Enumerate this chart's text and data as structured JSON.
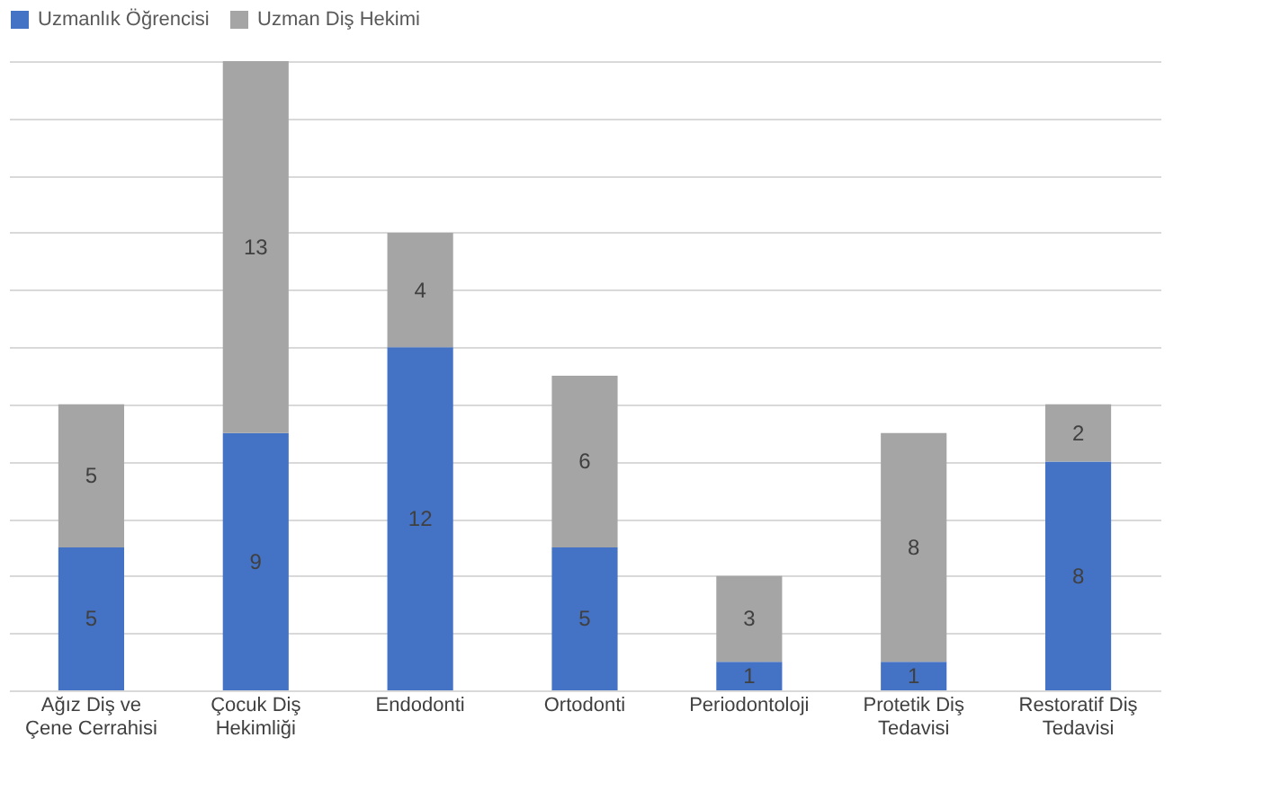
{
  "chart_data": {
    "type": "bar",
    "stacked": true,
    "grid": "y",
    "legend": "top",
    "data_labels": true,
    "tick_labels": "x",
    "categories": [
      "Ağız  Diş ve Çene Cerrahisi",
      "Çocuk Diş Hekimliği",
      "Endodonti",
      "Ortodonti",
      "Periodontoloji",
      "Protetik Diş Tedavisi",
      "Restoratif Diş Tedavisi"
    ],
    "series": [
      {
        "name": "Uzmanlık Öğrencisi",
        "color": "#4472c4",
        "values": [
          5,
          9,
          12,
          5,
          1,
          1,
          8
        ]
      },
      {
        "name": "Uzman Diş Hekimi",
        "color": "#a5a5a5",
        "values": [
          5,
          13,
          4,
          6,
          3,
          8,
          2
        ]
      }
    ]
  }
}
